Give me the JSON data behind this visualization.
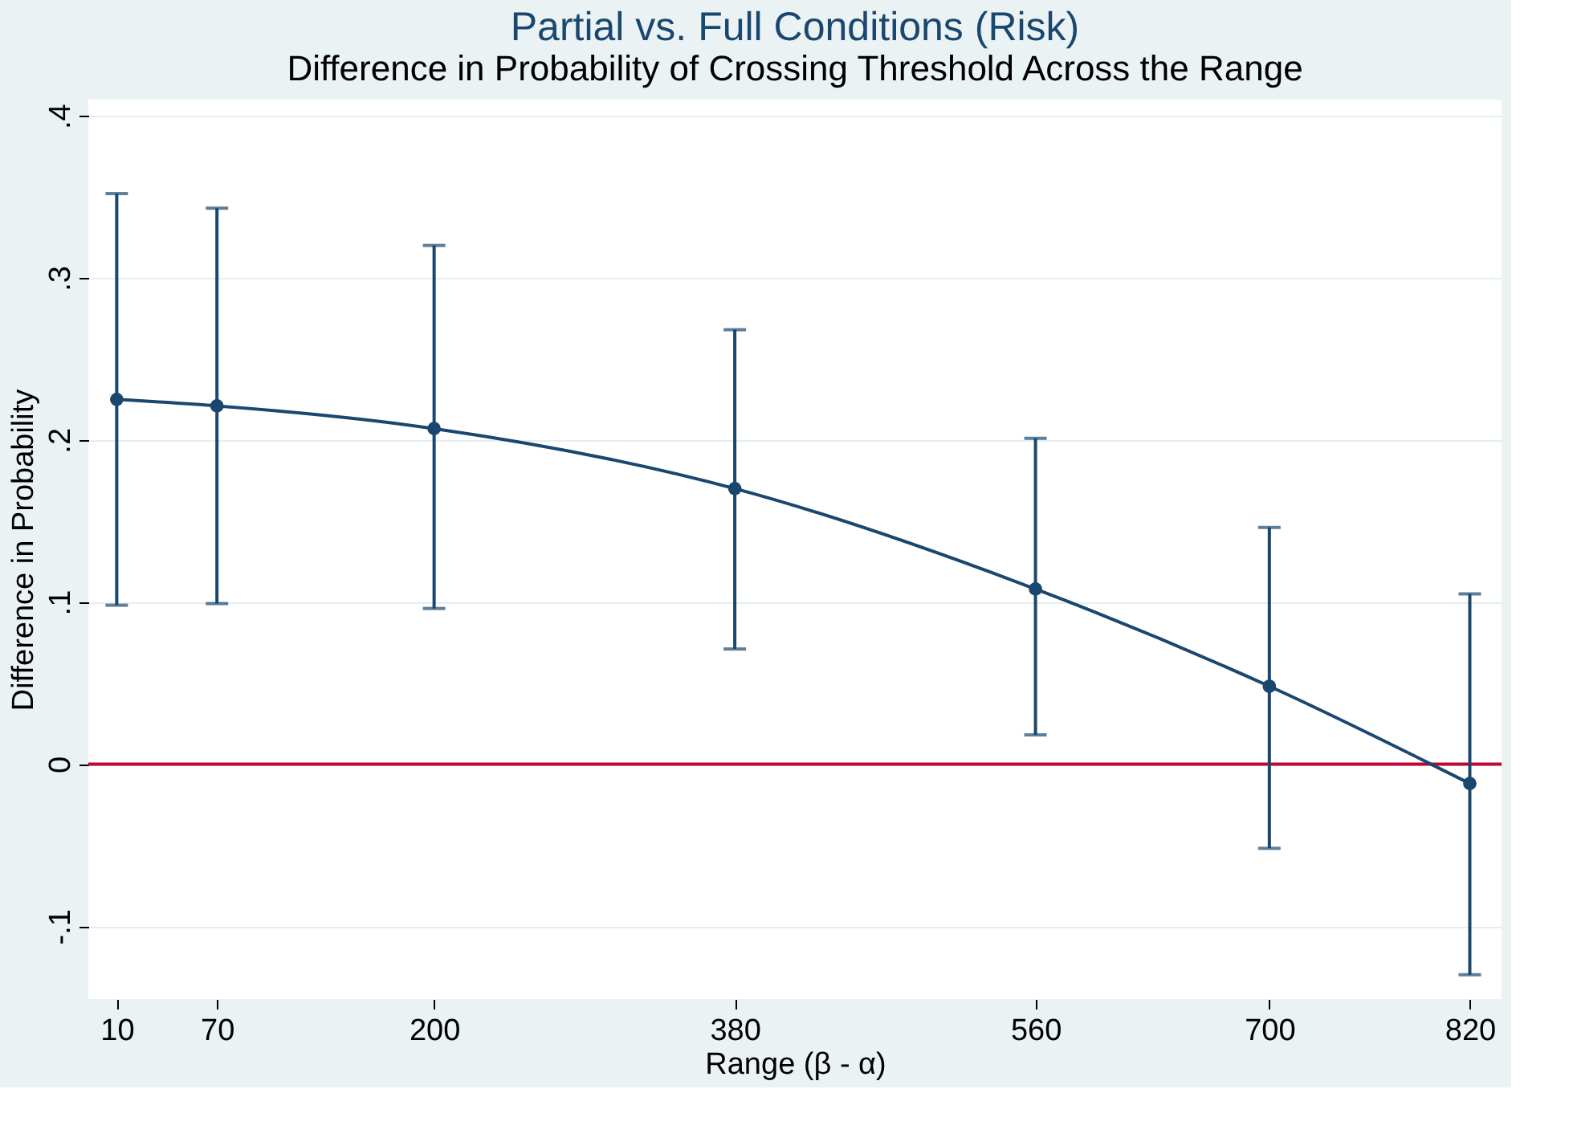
{
  "chart_data": {
    "type": "line",
    "title": "Partial vs. Full Conditions (Risk)",
    "subtitle": "Difference in Probability of Crossing Threshold Across the Range",
    "xlabel": "Range (β - α)",
    "ylabel": "Difference in Probability",
    "x": [
      10,
      70,
      200,
      380,
      560,
      700,
      820
    ],
    "series": [
      {
        "color": "#1a476f",
        "values": [
          0.225,
          0.221,
          0.207,
          0.17,
          0.108,
          0.048,
          -0.012
        ],
        "errors": [
          [
            0.098,
            0.352
          ],
          [
            0.099,
            0.343
          ],
          [
            0.096,
            0.32
          ],
          [
            0.071,
            0.268
          ],
          [
            0.018,
            0.201
          ],
          [
            -0.052,
            0.146
          ],
          [
            -0.13,
            0.105
          ]
        ]
      }
    ],
    "xlim": [
      -7,
      839
    ],
    "xticks": [
      10,
      70,
      200,
      380,
      560,
      700,
      820
    ],
    "ylim": [
      -0.145,
      0.41
    ],
    "yticks": [
      {
        "value": -0.1,
        "label": "-.1"
      },
      {
        "value": 0,
        "label": "0"
      },
      {
        "value": 0.1,
        "label": ".1"
      },
      {
        "value": 0.2,
        "label": ".2"
      },
      {
        "value": 0.3,
        "label": ".3"
      },
      {
        "value": 0.4,
        "label": ".4"
      }
    ],
    "ref_lines": [
      {
        "axis": "y",
        "value": 0,
        "color": "#c10534"
      }
    ],
    "grid": "y",
    "marker": "circle",
    "line_style": "solid"
  }
}
